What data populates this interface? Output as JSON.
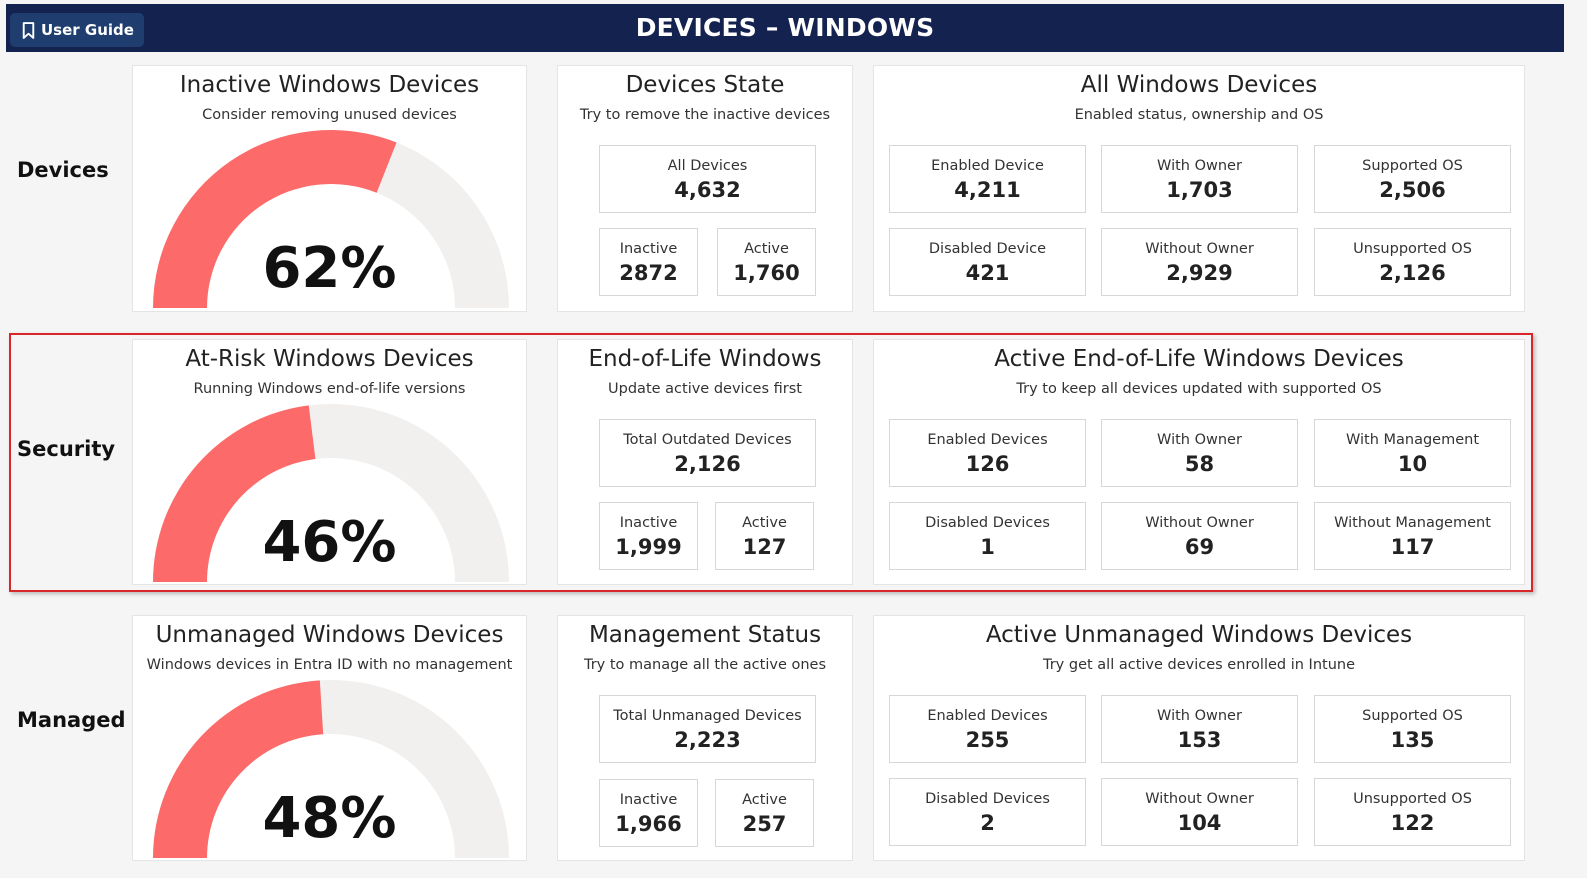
{
  "header": {
    "title": "DEVICES – WINDOWS",
    "guide_label": "User Guide"
  },
  "colors": {
    "header_bg": "#14224f",
    "gauge_fill": "#fd6a6a",
    "gauge_track": "#f2f0ee",
    "highlight_border": "#d9262a"
  },
  "rows": [
    {
      "label": "Devices",
      "gauge": {
        "title": "Inactive Windows Devices",
        "subtitle": "Consider removing unused devices",
        "percent_text": "62%",
        "percent": 62
      },
      "state": {
        "title": "Devices State",
        "subtitle": "Try to remove the inactive devices",
        "total": {
          "label": "All Devices",
          "value": "4,632"
        },
        "left": {
          "label": "Inactive",
          "value": "2872"
        },
        "right": {
          "label": "Active",
          "value": "1,760"
        }
      },
      "detail": {
        "title": "All Windows Devices",
        "subtitle": "Enabled status, ownership and OS",
        "stats": [
          {
            "label": "Enabled Device",
            "value": "4,211"
          },
          {
            "label": "With Owner",
            "value": "1,703"
          },
          {
            "label": "Supported OS",
            "value": "2,506"
          },
          {
            "label": "Disabled Device",
            "value": "421"
          },
          {
            "label": "Without Owner",
            "value": "2,929"
          },
          {
            "label": "Unsupported OS",
            "value": "2,126"
          }
        ]
      }
    },
    {
      "label": "Security",
      "gauge": {
        "title": "At-Risk Windows Devices",
        "subtitle": "Running Windows end-of-life versions",
        "percent_text": "46%",
        "percent": 46
      },
      "state": {
        "title": "End-of-Life Windows",
        "subtitle": "Update active devices first",
        "total": {
          "label": "Total Outdated Devices",
          "value": "2,126"
        },
        "left": {
          "label": "Inactive",
          "value": "1,999"
        },
        "right": {
          "label": "Active",
          "value": "127"
        }
      },
      "detail": {
        "title": "Active End-of-Life Windows Devices",
        "subtitle": "Try to keep all devices updated with supported OS",
        "stats": [
          {
            "label": "Enabled Devices",
            "value": "126"
          },
          {
            "label": "With Owner",
            "value": "58"
          },
          {
            "label": "With Management",
            "value": "10"
          },
          {
            "label": "Disabled Devices",
            "value": "1"
          },
          {
            "label": "Without Owner",
            "value": "69"
          },
          {
            "label": "Without Management",
            "value": "117"
          }
        ]
      }
    },
    {
      "label": "Managed",
      "gauge": {
        "title": "Unmanaged Windows Devices",
        "subtitle": "Windows devices in Entra ID with no management",
        "percent_text": "48%",
        "percent": 48
      },
      "state": {
        "title": "Management Status",
        "subtitle": "Try to manage all the active ones",
        "total": {
          "label": "Total Unmanaged Devices",
          "value": "2,223"
        },
        "left": {
          "label": "Inactive",
          "value": "1,966"
        },
        "right": {
          "label": "Active",
          "value": "257"
        }
      },
      "detail": {
        "title": "Active Unmanaged Windows Devices",
        "subtitle": "Try get all active devices enrolled in Intune",
        "stats": [
          {
            "label": "Enabled Devices",
            "value": "255"
          },
          {
            "label": "With Owner",
            "value": "153"
          },
          {
            "label": "Supported OS",
            "value": "135"
          },
          {
            "label": "Disabled Devices",
            "value": "2"
          },
          {
            "label": "Without Owner",
            "value": "104"
          },
          {
            "label": "Unsupported OS",
            "value": "122"
          }
        ]
      }
    }
  ]
}
